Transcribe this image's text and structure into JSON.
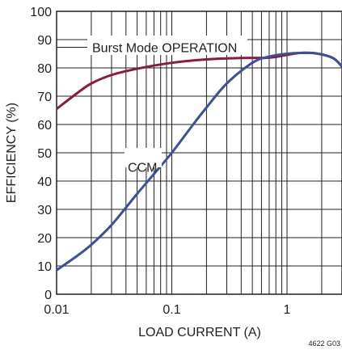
{
  "chart_data": {
    "type": "line",
    "xscale": "log",
    "xlim": [
      0.01,
      3
    ],
    "ylim": [
      0,
      100
    ],
    "grid": true,
    "xlabel": "LOAD CURRENT (A)",
    "ylabel": "EFFICIENCY (%)",
    "xticks": [
      0.01,
      0.1,
      1
    ],
    "xtick_labels": [
      "0.01",
      "0.1",
      "1"
    ],
    "yticks": [
      0,
      10,
      20,
      30,
      40,
      50,
      60,
      70,
      80,
      90,
      100
    ],
    "ytick_labels": [
      "0",
      "10",
      "20",
      "30",
      "40",
      "50",
      "60",
      "70",
      "80",
      "90",
      "100"
    ],
    "series": [
      {
        "name": "Burst Mode OPERATION",
        "color": "#8b1a3c",
        "x": [
          0.01,
          0.015,
          0.02,
          0.03,
          0.05,
          0.1,
          0.2,
          0.4,
          0.7,
          1.0,
          1.3,
          1.8,
          2.5,
          3.0
        ],
        "y": [
          65.5,
          71,
          74.5,
          77.5,
          79.7,
          81.8,
          83.0,
          83.5,
          83.6,
          84.6,
          85.3,
          85.1,
          83.5,
          80.5
        ]
      },
      {
        "name": "CCM",
        "color": "#3b4f9a",
        "x": [
          0.01,
          0.015,
          0.02,
          0.03,
          0.05,
          0.07,
          0.1,
          0.15,
          0.2,
          0.3,
          0.5,
          0.7,
          1.0,
          1.3,
          1.8,
          2.5,
          3.0
        ],
        "y": [
          8.5,
          13.5,
          17.5,
          24.5,
          35.5,
          42.5,
          50,
          59.5,
          66,
          74.5,
          81.8,
          84.0,
          85.0,
          85.3,
          85.1,
          83.5,
          80.5
        ]
      }
    ],
    "annotations": [
      {
        "text": "Burst Mode OPERATION",
        "series": "Burst Mode OPERATION"
      },
      {
        "text": "CCM",
        "series": "CCM"
      }
    ],
    "figure_id": "4622 G03"
  }
}
